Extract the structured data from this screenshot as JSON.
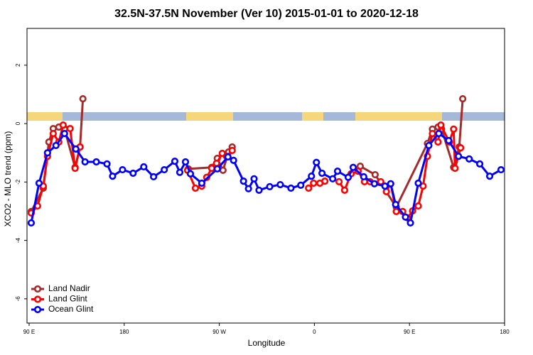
{
  "chart_data": {
    "type": "line",
    "title": "32.5N-37.5N November (Ver 10)   2015-01-01 to 2020-12-18",
    "x_label": "Longitude",
    "y_label": "XCO2 - MLO trend (ppm)",
    "xlim": [
      88,
      540
    ],
    "ylim": [
      -6.83,
      3.26
    ],
    "xticks": [
      {
        "value": 90,
        "label": "90 E"
      },
      180,
      {
        "value": 270,
        "label": "90 W"
      },
      {
        "value": 360,
        "label": "0"
      },
      {
        "value": 450,
        "label": "90 E"
      },
      {
        "value": 540,
        "label": "180"
      }
    ],
    "yticks": [
      -6,
      -4,
      -2,
      0,
      2
    ],
    "grid": false,
    "legend": "bottom-left",
    "series": [
      {
        "name": "Land Nadir",
        "color": "#a52a2a",
        "x": [
          92.0,
          103.4,
          108.7,
          112.8,
          118.1,
          123.5,
          133.5,
          138.2,
          140.9,
          null,
          240.7,
          262.8,
          268.1,
          273.5,
          278.8,
          282.2,
          null,
          403.4,
          417.5,
          437.5,
          467.0,
          471.7,
          477.0,
          480.4,
          491.8,
          497.1,
          500.4
        ],
        "values": [
          -3.01,
          -2.21,
          -0.63,
          -0.17,
          -0.12,
          -0.19,
          -1.5,
          -0.8,
          0.85,
          null,
          -1.55,
          -1.5,
          -1.19,
          -1.6,
          -0.97,
          -0.8,
          null,
          -1.46,
          -1.75,
          -2.86,
          -0.68,
          -0.19,
          -0.12,
          -0.19,
          -1.5,
          -0.8,
          0.85
        ]
      },
      {
        "name": "Land Glint",
        "color": "#ff0000",
        "x": [
          92.0,
          98.0,
          103.4,
          107.4,
          112.8,
          118.1,
          122.2,
          128.8,
          133.5,
          138.2,
          null,
          240.0,
          247.4,
          253.4,
          258.1,
          262.8,
          267.4,
          272.8,
          276.8,
          282.2,
          null,
          354.5,
          359.2,
          365.2,
          369.9,
          null,
          383.3,
          388.6,
          394.7,
          401.4,
          407.4,
          412.7,
          422.8,
          428.1,
          432.2,
          437.5,
          443.6,
          448.2,
          452.9,
          458.3,
          462.9,
          467.0,
          471.7,
          477.0,
          479.7,
          487.7,
          491.8,
          493.1,
          498.4
        ],
        "values": [
          -3.06,
          -2.82,
          -2.14,
          -1.12,
          -0.34,
          -0.63,
          -0.05,
          -0.17,
          -1.53,
          -0.8,
          null,
          -1.6,
          -2.21,
          -2.14,
          -1.84,
          -1.53,
          -1.36,
          -1.02,
          -1.12,
          -0.92,
          null,
          -2.21,
          -2.04,
          -2.04,
          -1.97,
          null,
          -1.99,
          -2.28,
          -1.72,
          -1.63,
          -1.99,
          -1.99,
          -1.99,
          -2.33,
          -2.06,
          -3.01,
          -3.01,
          -3.23,
          -2.99,
          -2.82,
          -2.14,
          -1.12,
          -0.34,
          -0.63,
          -0.05,
          -0.63,
          -0.19,
          -1.53,
          -0.83
        ]
      },
      {
        "name": "Ocean Glint",
        "color": "#0000ff",
        "x": [
          92.0,
          99.4,
          107.4,
          115.4,
          123.5,
          134.2,
          142.9,
          153.6,
          163.7,
          169.0,
          178.4,
          188.4,
          198.5,
          207.8,
          217.9,
          227.9,
          232.6,
          238.0,
          242.7,
          253.4,
          268.1,
          278.2,
          283.5,
          292.9,
          297.6,
          302.9,
          307.6,
          317.7,
          327.7,
          337.8,
          347.1,
          357.2,
          361.9,
          367.2,
          377.3,
          381.9,
          392.0,
          396.7,
          406.7,
          416.8,
          426.8,
          432.2,
          436.9,
          446.2,
          450.9,
          458.3,
          468.3,
          477.7,
          487.1,
          496.4,
          506.5,
          516.5,
          525.9,
          536.6
        ],
        "values": [
          -3.4,
          -2.04,
          -1.0,
          -0.75,
          -0.34,
          -0.87,
          -1.31,
          -1.31,
          -1.38,
          -1.8,
          -1.58,
          -1.7,
          -1.48,
          -1.82,
          -1.58,
          -1.29,
          -1.67,
          -1.31,
          -1.72,
          -2.04,
          -1.55,
          -1.14,
          -1.26,
          -1.97,
          -2.23,
          -1.89,
          -2.28,
          -2.16,
          -2.09,
          -2.21,
          -2.11,
          -1.8,
          -1.33,
          -1.7,
          -1.89,
          -1.63,
          -1.84,
          -1.5,
          -1.82,
          -2.06,
          -2.14,
          -2.06,
          -2.77,
          -3.2,
          -3.4,
          -2.04,
          -0.75,
          -0.34,
          -0.58,
          -1.12,
          -1.21,
          -1.38,
          -1.8,
          -1.58
        ]
      }
    ]
  }
}
